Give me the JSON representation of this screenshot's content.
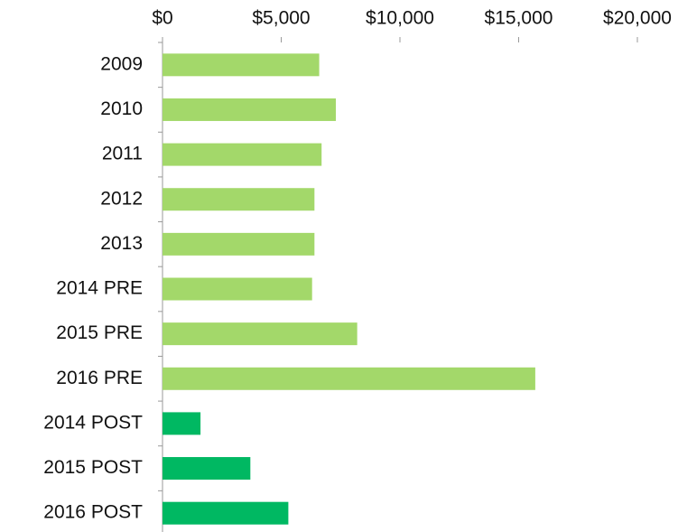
{
  "chart_data": {
    "type": "barh",
    "categories": [
      "2009",
      "2010",
      "2011",
      "2012",
      "2013",
      "2014 PRE",
      "2015 PRE",
      "2016 PRE",
      "2014 POST",
      "2015 POST",
      "2016 POST"
    ],
    "values": [
      6600,
      7300,
      6700,
      6400,
      6400,
      6300,
      8200,
      15700,
      1600,
      3700,
      5300
    ],
    "colors": [
      "#a3d86a",
      "#a3d86a",
      "#a3d86a",
      "#a3d86a",
      "#a3d86a",
      "#a3d86a",
      "#a3d86a",
      "#a3d86a",
      "#00b862",
      "#00b862",
      "#00b862"
    ],
    "xlim": [
      0,
      20000
    ],
    "xticks": [
      {
        "value": 0,
        "label": "$0"
      },
      {
        "value": 5000,
        "label": "$5,000"
      },
      {
        "value": 10000,
        "label": "$10,000"
      },
      {
        "value": 15000,
        "label": "$15,000"
      },
      {
        "value": 20000,
        "label": "$20,000"
      }
    ],
    "grid": false
  }
}
